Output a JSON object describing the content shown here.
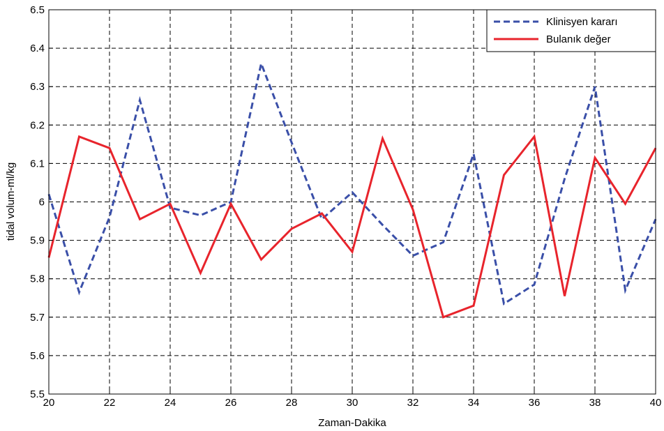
{
  "chart_data": {
    "type": "line",
    "xlabel": "Zaman-Dakika",
    "ylabel": "tidal volum-ml/kg",
    "xlim": [
      20,
      40
    ],
    "ylim": [
      5.5,
      6.5
    ],
    "x_ticks": [
      20,
      22,
      24,
      26,
      28,
      30,
      32,
      34,
      36,
      38,
      40
    ],
    "y_ticks": [
      5.5,
      5.6,
      5.7,
      5.8,
      5.9,
      6.0,
      6.1,
      6.2,
      6.3,
      6.4,
      6.5
    ],
    "x_tick_labels": [
      "20",
      "22",
      "24",
      "26",
      "28",
      "30",
      "32",
      "34",
      "36",
      "38",
      "40"
    ],
    "y_tick_labels": [
      "5.5",
      "5.6",
      "5.7",
      "5.8",
      "5.9",
      "6",
      "6.1",
      "6.2",
      "6.3",
      "6.4",
      "6.5"
    ],
    "grid": true,
    "legend_position": "top-right",
    "x": [
      20,
      21,
      22,
      23,
      24,
      25,
      26,
      27,
      28,
      29,
      30,
      31,
      32,
      33,
      34,
      35,
      36,
      37,
      38,
      39,
      40
    ],
    "series": [
      {
        "name": "Klinisyen kararı",
        "color": "#3a4fa8",
        "style": "dashed",
        "values": [
          6.02,
          5.765,
          5.96,
          6.265,
          5.985,
          5.965,
          6.0,
          6.36,
          6.155,
          5.955,
          6.025,
          5.94,
          5.86,
          5.895,
          6.125,
          5.735,
          5.785,
          6.06,
          6.3,
          5.77,
          5.955
        ]
      },
      {
        "name": "Bulanık değer",
        "color": "#e8242c",
        "style": "solid",
        "values": [
          5.855,
          6.17,
          6.14,
          5.955,
          5.995,
          5.815,
          5.995,
          5.85,
          5.93,
          5.97,
          5.87,
          6.165,
          5.98,
          5.7,
          5.73,
          6.07,
          6.17,
          5.755,
          6.115,
          5.995,
          6.14
        ]
      }
    ]
  }
}
